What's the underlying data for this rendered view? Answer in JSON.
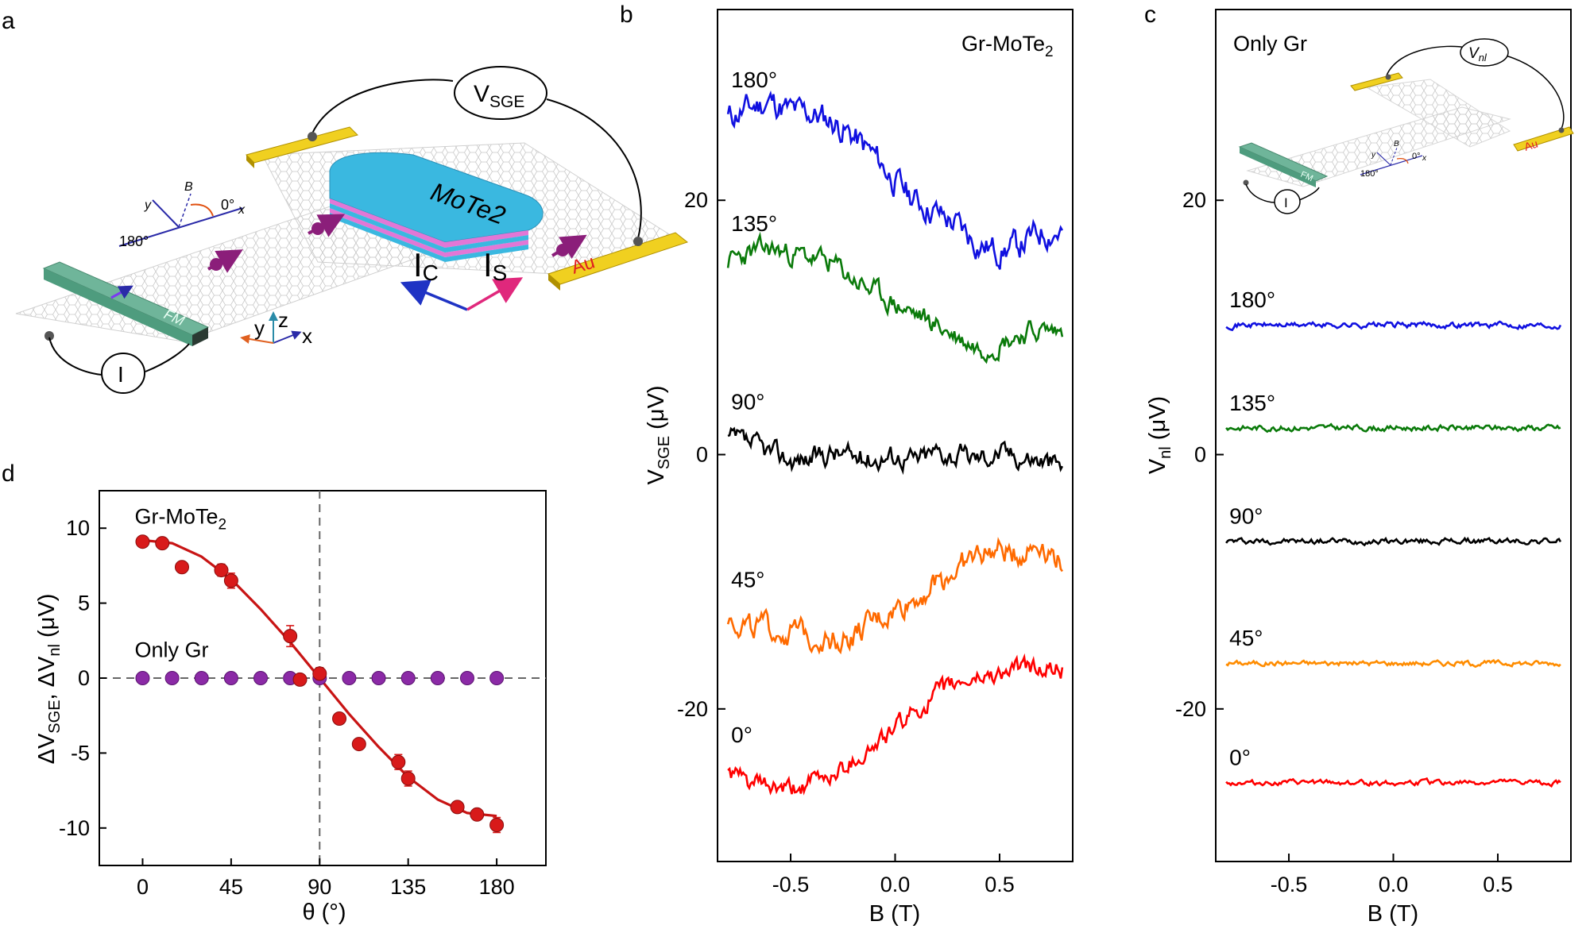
{
  "panel_labels": {
    "a": "a",
    "b": "b",
    "c": "c",
    "d": "d"
  },
  "schematic_a": {
    "v_label": "V",
    "v_sub": "SGE",
    "material": "MoTe2",
    "contact": "Au",
    "ferromagnet": "FM",
    "current": "I",
    "charge_current": "I",
    "charge_sub": "C",
    "spin_current": "I",
    "spin_sub": "S",
    "angle_180": "180°",
    "angle_0": "0°",
    "field": "B",
    "axis_x": "x",
    "axis_y": "y",
    "axis_z": "z",
    "colors": {
      "mote2": "#3ab8e0",
      "mote2_edge": "#e277d6",
      "gold": "#f0d020",
      "fm": "#6fb59a",
      "spin": "#8b1e7a",
      "ic_arrow": "#1f33c4",
      "is_arrow": "#e0287c"
    }
  },
  "inset_c": {
    "v_label": "V",
    "v_sub": "nl",
    "contact": "Au",
    "ferromagnet": "FM",
    "current": "I",
    "field": "B",
    "angle_180": "180°",
    "angle_0": "0°",
    "axis_x": "x",
    "axis_y": "y"
  },
  "chart_data": [
    {
      "panel": "b",
      "type": "line",
      "title": "Gr-MoTe",
      "title_sub": "2",
      "xlabel": "B (T)",
      "ylabel": "V",
      "ylabel_sub": "SGE",
      "ylabel_unit": " (μV)",
      "xlim": [
        -0.85,
        0.85
      ],
      "ylim": [
        -32,
        35
      ],
      "xticks": [
        -0.5,
        0.0,
        0.5
      ],
      "xtick_labels": [
        "-0.5",
        "0.0",
        "0.5"
      ],
      "yticks": [
        -20,
        0,
        20
      ],
      "ytick_labels": [
        "-20",
        "0",
        "20"
      ],
      "series": [
        {
          "name": "180°",
          "color": "#1010e0",
          "x": [
            -0.8,
            -0.7,
            -0.6,
            -0.5,
            -0.4,
            -0.3,
            -0.2,
            -0.1,
            0.0,
            0.1,
            0.2,
            0.3,
            0.4,
            0.5,
            0.6,
            0.7,
            0.8
          ],
          "y": [
            26.5,
            27.2,
            27.8,
            27.0,
            26.8,
            26.2,
            25.0,
            23.5,
            21.5,
            20.0,
            19.0,
            18.0,
            16.5,
            16.0,
            16.5,
            17.5,
            17.5
          ],
          "noise": 0.9,
          "seed": 11
        },
        {
          "name": "135°",
          "color": "#0a7a0a",
          "x": [
            -0.8,
            -0.7,
            -0.6,
            -0.5,
            -0.4,
            -0.3,
            -0.2,
            -0.1,
            0.0,
            0.1,
            0.2,
            0.3,
            0.4,
            0.5,
            0.6,
            0.7,
            0.8
          ],
          "y": [
            15.2,
            15.8,
            16.2,
            15.8,
            15.5,
            15.0,
            13.8,
            12.8,
            11.8,
            11.0,
            10.2,
            9.2,
            8.4,
            8.8,
            9.5,
            9.8,
            9.6
          ],
          "noise": 0.7,
          "seed": 23
        },
        {
          "name": "90°",
          "color": "#000000",
          "x": [
            -0.8,
            -0.7,
            -0.6,
            -0.5,
            -0.4,
            -0.3,
            -0.2,
            -0.1,
            0.0,
            0.1,
            0.2,
            0.3,
            0.4,
            0.5,
            0.6,
            0.7,
            0.8
          ],
          "y": [
            1.2,
            0.8,
            0.2,
            -0.4,
            -0.3,
            0.2,
            -0.2,
            -0.3,
            0.0,
            -0.4,
            0.3,
            -0.1,
            -0.2,
            0.2,
            -0.1,
            -0.4,
            -0.9
          ],
          "noise": 0.7,
          "seed": 37
        },
        {
          "name": "45°",
          "color": "#ff6a00",
          "x": [
            -0.8,
            -0.7,
            -0.6,
            -0.5,
            -0.4,
            -0.3,
            -0.2,
            -0.1,
            0.0,
            0.1,
            0.2,
            0.3,
            0.4,
            0.5,
            0.6,
            0.7,
            0.8
          ],
          "y": [
            -12.8,
            -13.5,
            -13.8,
            -14.0,
            -14.2,
            -14.5,
            -14.3,
            -13.2,
            -12.2,
            -11.2,
            -10.0,
            -9.0,
            -7.8,
            -7.6,
            -7.8,
            -6.8,
            -8.5
          ],
          "noise": 0.8,
          "seed": 49
        },
        {
          "name": "0°",
          "color": "#ff0000",
          "x": [
            -0.8,
            -0.7,
            -0.6,
            -0.5,
            -0.4,
            -0.3,
            -0.2,
            -0.1,
            0.0,
            0.1,
            0.2,
            0.3,
            0.4,
            0.5,
            0.6,
            0.7,
            0.8
          ],
          "y": [
            -25.0,
            -25.8,
            -26.2,
            -26.5,
            -25.8,
            -25.2,
            -24.0,
            -23.0,
            -21.5,
            -20.2,
            -18.8,
            -18.0,
            -17.5,
            -17.2,
            -16.8,
            -16.8,
            -16.9
          ],
          "noise": 0.6,
          "seed": 61
        }
      ]
    },
    {
      "panel": "c",
      "type": "line",
      "title": "Only Gr",
      "xlabel": "B (T)",
      "ylabel": "V",
      "ylabel_sub": "nl",
      "ylabel_unit": " (μV)",
      "xlim": [
        -0.85,
        0.85
      ],
      "ylim": [
        -32,
        35
      ],
      "xticks": [
        -0.5,
        0.0,
        0.5
      ],
      "xtick_labels": [
        "-0.5",
        "0.0",
        "0.5"
      ],
      "yticks": [
        -20,
        0,
        20
      ],
      "ytick_labels": [
        "-20",
        "0",
        "20"
      ],
      "series": [
        {
          "name": "180°",
          "color": "#1010e0",
          "x": [
            -0.8,
            0.8
          ],
          "y": [
            10.2,
            10.2
          ],
          "noise": 0.18,
          "seed": 71
        },
        {
          "name": "135°",
          "color": "#0a7a0a",
          "x": [
            -0.8,
            0.8
          ],
          "y": [
            2.1,
            2.1
          ],
          "noise": 0.18,
          "seed": 83
        },
        {
          "name": "90°",
          "color": "#000000",
          "x": [
            -0.8,
            0.8
          ],
          "y": [
            -6.8,
            -6.8
          ],
          "noise": 0.18,
          "seed": 97
        },
        {
          "name": "45°",
          "color": "#ff8c00",
          "x": [
            -0.8,
            0.8
          ],
          "y": [
            -16.4,
            -16.4
          ],
          "noise": 0.16,
          "seed": 101
        },
        {
          "name": "0°",
          "color": "#ff0000",
          "x": [
            -0.8,
            0.8
          ],
          "y": [
            -25.8,
            -25.8
          ],
          "noise": 0.16,
          "seed": 113
        }
      ]
    },
    {
      "panel": "d",
      "type": "scatter",
      "xlabel": "θ (°)",
      "ylabel_parts": [
        "ΔV",
        "SGE",
        ", ΔV",
        "nl",
        " (μV)"
      ],
      "xlim": [
        -22,
        205
      ],
      "ylim": [
        -12.5,
        12.5
      ],
      "xticks": [
        0,
        45,
        90,
        135,
        180
      ],
      "xtick_labels": [
        "0",
        "45",
        "90",
        "135",
        "180"
      ],
      "yticks": [
        -10,
        -5,
        0,
        5,
        10
      ],
      "ytick_labels": [
        "-10",
        "-5",
        "0",
        "5",
        "10"
      ],
      "annotations": [
        {
          "text": "Gr-MoTe",
          "sub": "2",
          "x": 0,
          "y": 10.3
        },
        {
          "text": "Only Gr",
          "x": 0,
          "y": 1.4
        }
      ],
      "vline": 90,
      "hline": 0,
      "series": [
        {
          "name": "Gr-MoTe2",
          "color": "#d81a1a",
          "x": [
            0,
            10,
            20,
            40,
            45,
            75,
            80,
            90,
            100,
            110,
            130,
            135,
            160,
            170,
            180
          ],
          "y": [
            9.1,
            9.0,
            7.4,
            7.2,
            6.5,
            2.8,
            -0.1,
            0.3,
            -2.7,
            -4.4,
            -5.6,
            -6.7,
            -8.6,
            -9.1,
            -9.8
          ],
          "err": [
            0.3,
            0.3,
            0.2,
            0.4,
            0.5,
            0.7,
            0.2,
            0.4,
            0.3,
            0.2,
            0.5,
            0.5,
            0.2,
            0.3,
            0.5
          ]
        },
        {
          "name": "Only Gr",
          "color": "#8b2aa6",
          "x": [
            0,
            15,
            30,
            45,
            60,
            75,
            90,
            105,
            120,
            135,
            150,
            165,
            180
          ],
          "y": [
            0,
            0,
            0,
            0,
            0,
            0,
            0,
            0,
            0,
            0,
            0,
            0,
            0
          ]
        },
        {
          "name": "fit",
          "color": "#c81414",
          "x": [
            0,
            15,
            30,
            45,
            60,
            75,
            90,
            105,
            120,
            135,
            150,
            165,
            180
          ],
          "y": [
            9.2,
            9.0,
            8.1,
            6.6,
            4.6,
            2.4,
            0.0,
            -2.4,
            -4.6,
            -6.6,
            -8.1,
            -9.0,
            -9.2
          ]
        }
      ]
    }
  ]
}
